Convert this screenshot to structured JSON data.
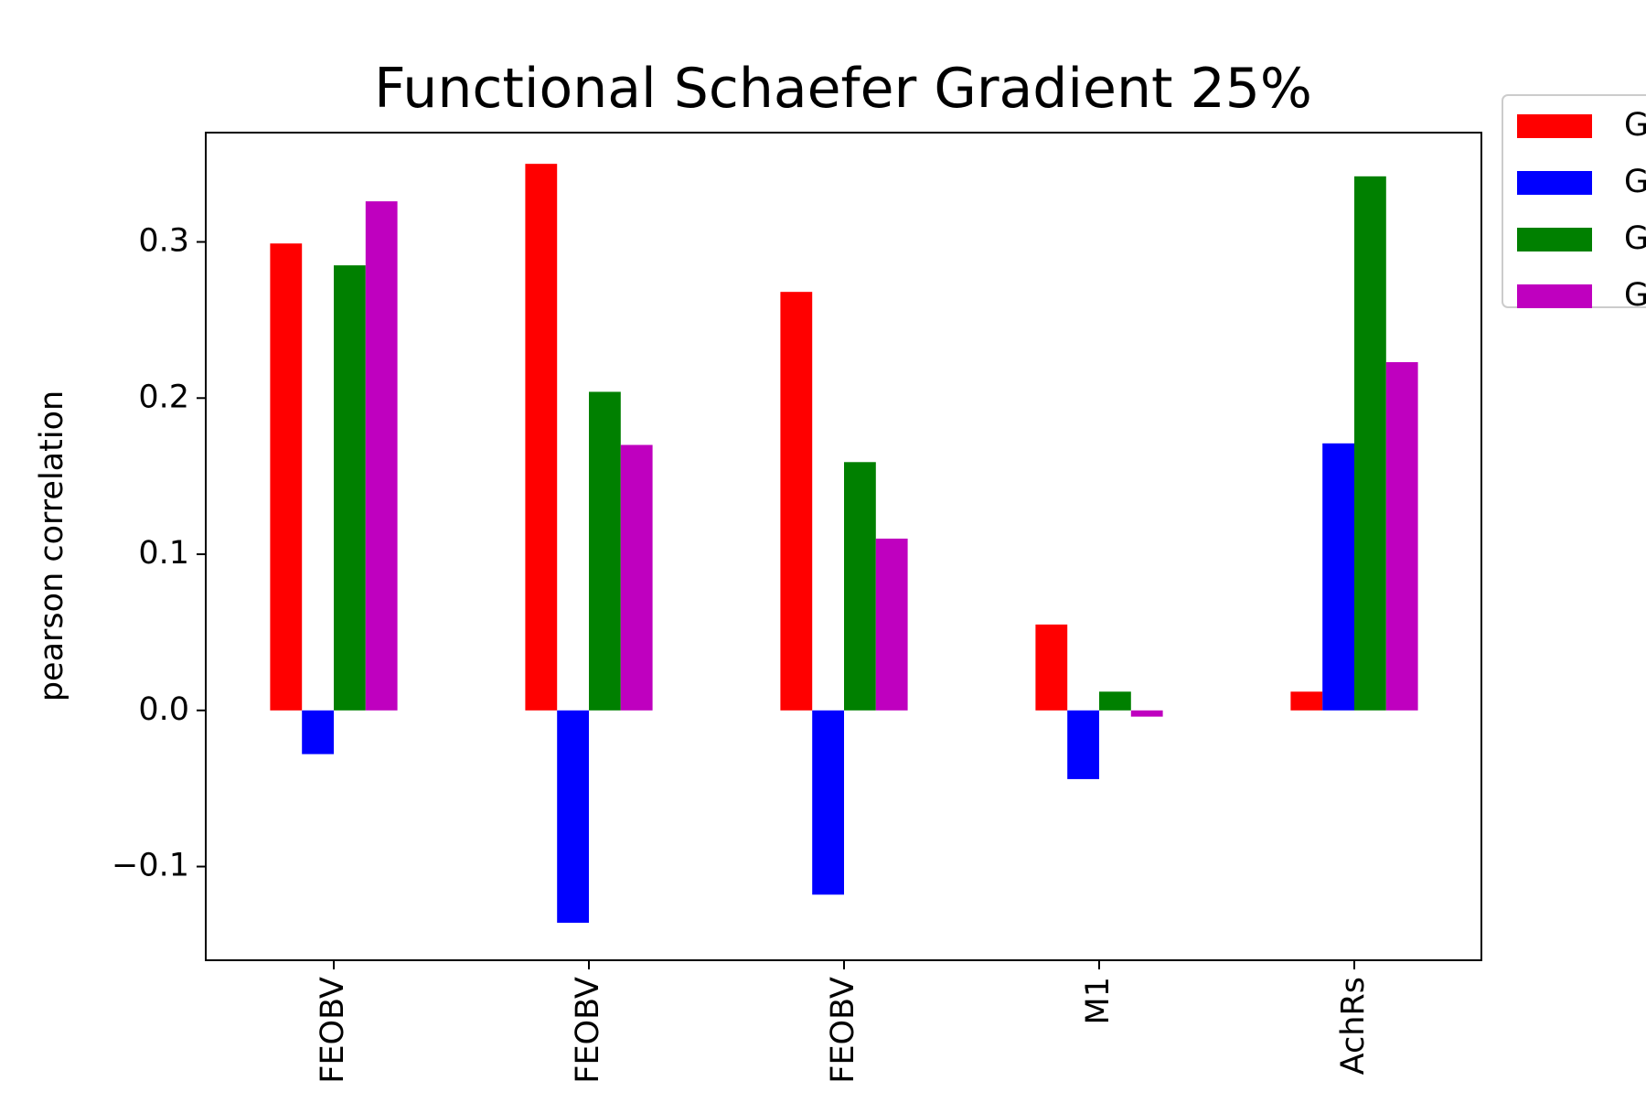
{
  "chart_data": {
    "type": "bar",
    "title": "Functional Schaefer Gradient 25%",
    "xlabel": "",
    "ylabel": "pearson correlation",
    "ylim": [
      -0.16,
      0.37
    ],
    "yticks": [
      -0.1,
      0.0,
      0.1,
      0.2,
      0.3
    ],
    "ytick_labels": [
      "−0.1",
      "0.0",
      "0.1",
      "0.2",
      "0.3"
    ],
    "grid": false,
    "legend_position": "outside-top-right",
    "categories": [
      "FEOBV",
      "FEOBV",
      "FEOBV",
      "M1",
      "AchRs"
    ],
    "series": [
      {
        "name": "G",
        "color": "#ff0000",
        "values": [
          0.299,
          0.35,
          0.268,
          0.055,
          0.012
        ]
      },
      {
        "name": "G",
        "color": "#0000ff",
        "values": [
          -0.028,
          -0.136,
          -0.118,
          -0.044,
          0.171
        ]
      },
      {
        "name": "G",
        "color": "#008000",
        "values": [
          0.285,
          0.204,
          0.159,
          0.012,
          0.342
        ]
      },
      {
        "name": "G",
        "color": "#bf00bf",
        "values": [
          0.326,
          0.17,
          0.11,
          -0.004,
          0.223
        ]
      }
    ]
  }
}
